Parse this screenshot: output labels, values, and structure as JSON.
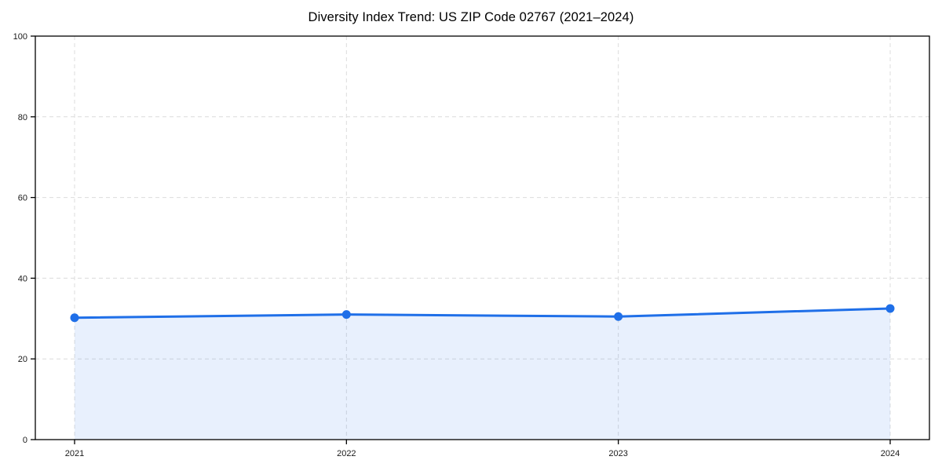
{
  "page": {
    "background": "#ffffff"
  },
  "chart_data": {
    "type": "area",
    "title": "Diversity Index Trend: US ZIP Code 02767 (2021–2024)",
    "x": [
      2021,
      2022,
      2023,
      2024
    ],
    "xtick_labels": [
      "2021",
      "2022",
      "2023",
      "2024"
    ],
    "series": [
      {
        "name": "Diversity Index",
        "values": [
          30.2,
          31.0,
          30.5,
          32.5
        ]
      }
    ],
    "xlabel": "",
    "ylabel": "",
    "ylim": [
      0,
      100
    ],
    "yticks": [
      0,
      20,
      40,
      60,
      80,
      100
    ],
    "grid": true,
    "grid_style": "dashed",
    "legend_position": "none",
    "colors": {
      "line": "#1f6fe8",
      "marker": "#1f6fe8",
      "fill": "rgba(31,111,232,0.10)",
      "grid": "#dcdcdc",
      "spine": "#000000",
      "tick_text": "#1a1a1a",
      "title_text": "#000000"
    }
  }
}
